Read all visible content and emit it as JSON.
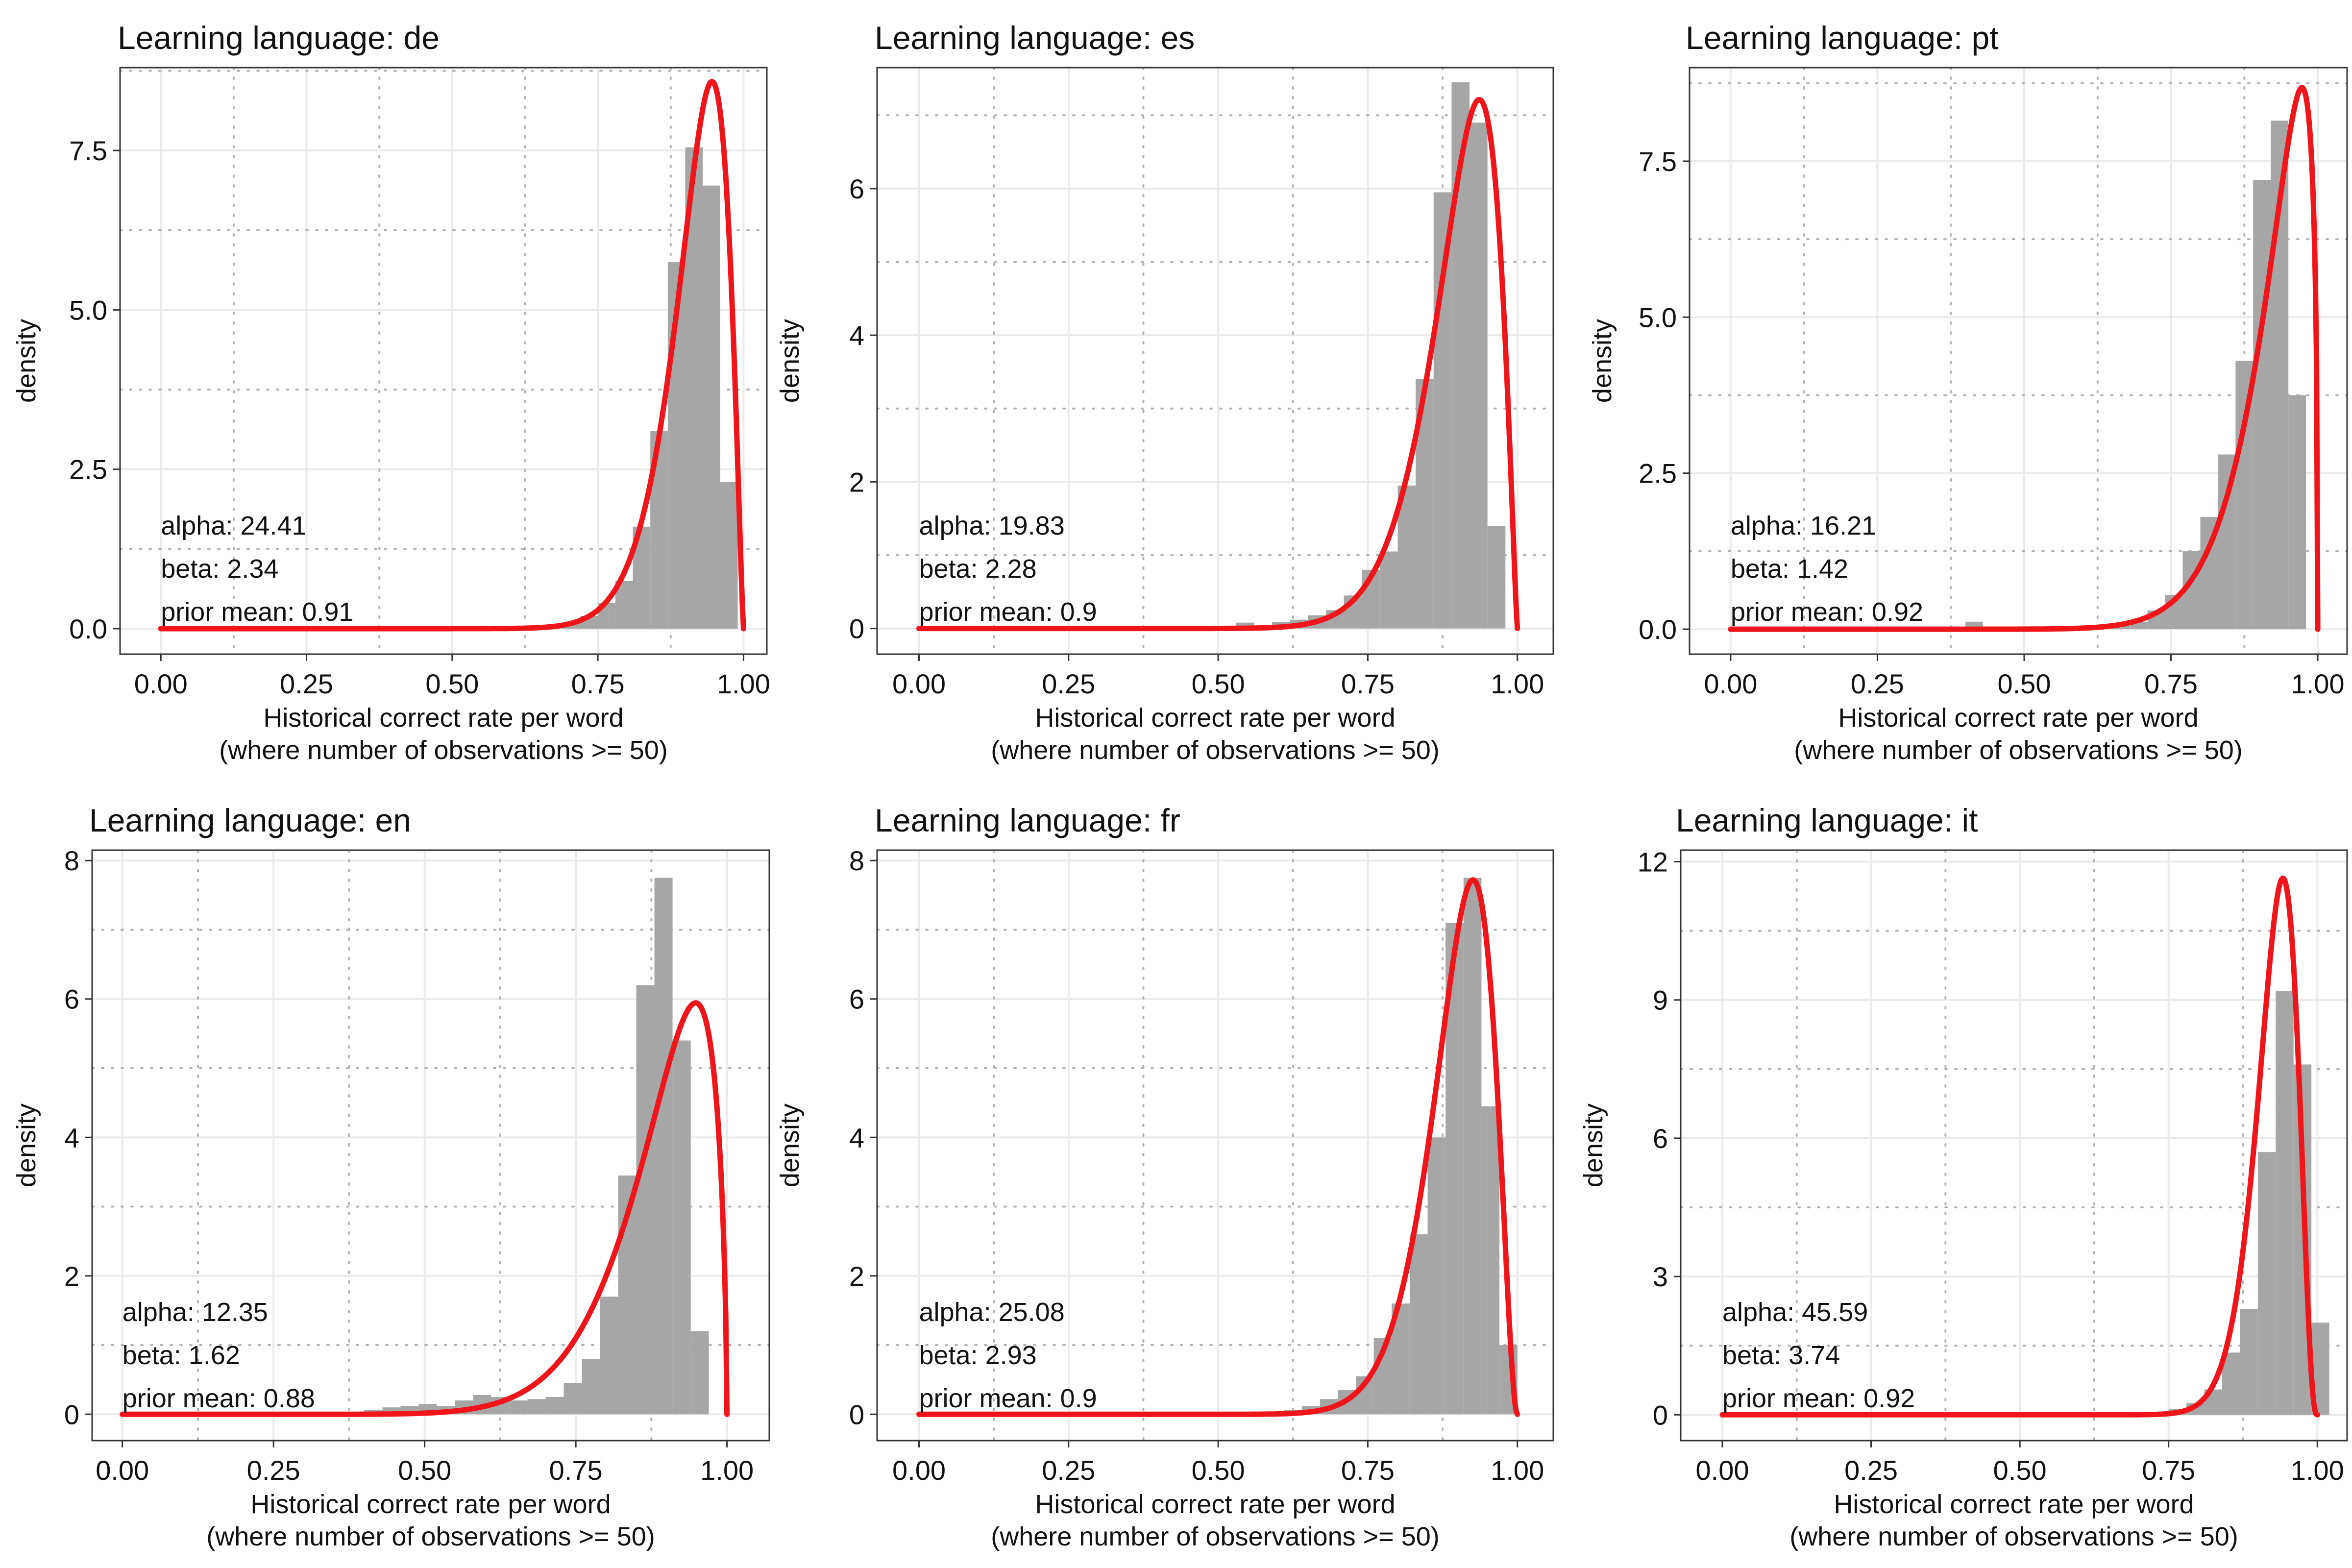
{
  "figure": {
    "style": {
      "bar_color": "#a6a6a6",
      "curve_color": "#f0151a",
      "panel_border_color": "#333333",
      "major_grid_color": "#ebebeb",
      "minor_grid_color": "#b3b3b3"
    }
  },
  "chart_data": [
    {
      "type": "bar",
      "title": "Learning language: de",
      "xlabel": "Historical correct rate per word",
      "xlabel_sub": "(where number of observations >= 50)",
      "ylabel": "density",
      "xlim": [
        -0.07,
        1.04
      ],
      "ylim": [
        -0.4,
        8.8
      ],
      "xticks": [
        0.0,
        0.25,
        0.5,
        0.75,
        1.0
      ],
      "xtick_labels": [
        "0.00",
        "0.25",
        "0.50",
        "0.75",
        "1.00"
      ],
      "yticks": [
        0.0,
        2.5,
        5.0,
        7.5
      ],
      "ytick_labels": [
        "0.0",
        "2.5",
        "5.0",
        "7.5"
      ],
      "bins": [
        [
          0.66,
          0.69,
          0.03
        ],
        [
          0.69,
          0.72,
          0.1
        ],
        [
          0.72,
          0.75,
          0.2
        ],
        [
          0.75,
          0.78,
          0.4
        ],
        [
          0.78,
          0.81,
          0.75
        ],
        [
          0.81,
          0.84,
          1.6
        ],
        [
          0.84,
          0.87,
          3.1
        ],
        [
          0.87,
          0.9,
          5.75
        ],
        [
          0.9,
          0.93,
          7.55
        ],
        [
          0.93,
          0.96,
          6.95
        ],
        [
          0.96,
          0.99,
          2.3
        ]
      ],
      "beta_fit": {
        "alpha": 24.41,
        "beta": 2.34
      },
      "annotations": [
        "alpha: 24.41",
        "beta: 2.34",
        "prior mean: 0.91"
      ]
    },
    {
      "type": "bar",
      "title": "Learning language: es",
      "xlabel": "Historical correct rate per word",
      "xlabel_sub": "(where number of observations >= 50)",
      "ylabel": "density",
      "xlim": [
        -0.07,
        1.06
      ],
      "ylim": [
        -0.35,
        7.65
      ],
      "xticks": [
        0.0,
        0.25,
        0.5,
        0.75,
        1.0
      ],
      "xtick_labels": [
        "0.00",
        "0.25",
        "0.50",
        "0.75",
        "1.00"
      ],
      "yticks": [
        0,
        2,
        4,
        6
      ],
      "ytick_labels": [
        "0",
        "2",
        "4",
        "6"
      ],
      "bins": [
        [
          0.5,
          0.53,
          0.02
        ],
        [
          0.53,
          0.56,
          0.08
        ],
        [
          0.56,
          0.59,
          0.04
        ],
        [
          0.59,
          0.62,
          0.09
        ],
        [
          0.62,
          0.65,
          0.12
        ],
        [
          0.65,
          0.68,
          0.18
        ],
        [
          0.68,
          0.71,
          0.25
        ],
        [
          0.71,
          0.74,
          0.45
        ],
        [
          0.74,
          0.77,
          0.8
        ],
        [
          0.77,
          0.8,
          1.05
        ],
        [
          0.8,
          0.83,
          1.95
        ],
        [
          0.83,
          0.86,
          3.4
        ],
        [
          0.86,
          0.89,
          5.95
        ],
        [
          0.89,
          0.92,
          7.45
        ],
        [
          0.92,
          0.95,
          6.9
        ],
        [
          0.95,
          0.98,
          1.4
        ]
      ],
      "beta_fit": {
        "alpha": 19.83,
        "beta": 2.28
      },
      "annotations": [
        "alpha: 19.83",
        "beta: 2.28",
        "prior mean: 0.9"
      ]
    },
    {
      "type": "bar",
      "title": "Learning language: pt",
      "xlabel": "Historical correct rate per word",
      "xlabel_sub": "(where number of observations >= 50)",
      "ylabel": "density",
      "xlim": [
        -0.07,
        1.05
      ],
      "ylim": [
        -0.4,
        9.0
      ],
      "xticks": [
        0.0,
        0.25,
        0.5,
        0.75,
        1.0
      ],
      "xtick_labels": [
        "0.00",
        "0.25",
        "0.50",
        "0.75",
        "1.00"
      ],
      "yticks": [
        0.0,
        2.5,
        5.0,
        7.5
      ],
      "ytick_labels": [
        "0.0",
        "2.5",
        "5.0",
        "7.5"
      ],
      "bins": [
        [
          0.4,
          0.43,
          0.12
        ],
        [
          0.65,
          0.68,
          0.05
        ],
        [
          0.68,
          0.71,
          0.12
        ],
        [
          0.71,
          0.74,
          0.3
        ],
        [
          0.74,
          0.77,
          0.55
        ],
        [
          0.77,
          0.8,
          1.25
        ],
        [
          0.8,
          0.83,
          1.8
        ],
        [
          0.83,
          0.86,
          2.8
        ],
        [
          0.86,
          0.89,
          4.3
        ],
        [
          0.89,
          0.92,
          7.2
        ],
        [
          0.92,
          0.95,
          8.15
        ],
        [
          0.95,
          0.98,
          3.75
        ]
      ],
      "beta_fit": {
        "alpha": 16.21,
        "beta": 1.42
      },
      "annotations": [
        "alpha: 16.21",
        "beta: 1.42",
        "prior mean: 0.92"
      ]
    },
    {
      "type": "bar",
      "title": "Learning language: en",
      "xlabel": "Historical correct rate per word",
      "xlabel_sub": "(where number of observations >= 50)",
      "ylabel": "density",
      "xlim": [
        -0.05,
        1.07
      ],
      "ylim": [
        -0.38,
        8.15
      ],
      "xticks": [
        0.0,
        0.25,
        0.5,
        0.75,
        1.0
      ],
      "xtick_labels": [
        "0.00",
        "0.25",
        "0.50",
        "0.75",
        "1.00"
      ],
      "yticks": [
        0,
        2,
        4,
        6,
        8
      ],
      "ytick_labels": [
        "0",
        "2",
        "4",
        "6",
        "8"
      ],
      "bins": [
        [
          0.37,
          0.4,
          0.03
        ],
        [
          0.4,
          0.43,
          0.06
        ],
        [
          0.43,
          0.46,
          0.1
        ],
        [
          0.46,
          0.49,
          0.12
        ],
        [
          0.49,
          0.52,
          0.15
        ],
        [
          0.52,
          0.55,
          0.12
        ],
        [
          0.55,
          0.58,
          0.2
        ],
        [
          0.58,
          0.61,
          0.28
        ],
        [
          0.61,
          0.64,
          0.25
        ],
        [
          0.64,
          0.67,
          0.2
        ],
        [
          0.67,
          0.7,
          0.22
        ],
        [
          0.7,
          0.73,
          0.25
        ],
        [
          0.73,
          0.76,
          0.45
        ],
        [
          0.76,
          0.79,
          0.8
        ],
        [
          0.79,
          0.82,
          1.7
        ],
        [
          0.82,
          0.85,
          3.45
        ],
        [
          0.85,
          0.88,
          6.2
        ],
        [
          0.88,
          0.91,
          7.75
        ],
        [
          0.91,
          0.94,
          5.4
        ],
        [
          0.94,
          0.97,
          1.2
        ]
      ],
      "beta_fit": {
        "alpha": 12.35,
        "beta": 1.62
      },
      "annotations": [
        "alpha: 12.35",
        "beta: 1.62",
        "prior mean: 0.88"
      ]
    },
    {
      "type": "bar",
      "title": "Learning language: fr",
      "xlabel": "Historical correct rate per word",
      "xlabel_sub": "(where number of observations >= 50)",
      "ylabel": "density",
      "xlim": [
        -0.07,
        1.06
      ],
      "ylim": [
        -0.38,
        8.15
      ],
      "xticks": [
        0.0,
        0.25,
        0.5,
        0.75,
        1.0
      ],
      "xtick_labels": [
        "0.00",
        "0.25",
        "0.50",
        "0.75",
        "1.00"
      ],
      "yticks": [
        0,
        2,
        4,
        6,
        8
      ],
      "ytick_labels": [
        "0",
        "2",
        "4",
        "6",
        "8"
      ],
      "bins": [
        [
          0.55,
          0.58,
          0.03
        ],
        [
          0.58,
          0.61,
          0.04
        ],
        [
          0.61,
          0.64,
          0.06
        ],
        [
          0.64,
          0.67,
          0.12
        ],
        [
          0.67,
          0.7,
          0.22
        ],
        [
          0.7,
          0.73,
          0.35
        ],
        [
          0.73,
          0.76,
          0.55
        ],
        [
          0.76,
          0.79,
          1.1
        ],
        [
          0.79,
          0.82,
          1.6
        ],
        [
          0.82,
          0.85,
          2.6
        ],
        [
          0.85,
          0.88,
          4.0
        ],
        [
          0.88,
          0.91,
          7.1
        ],
        [
          0.91,
          0.94,
          7.75
        ],
        [
          0.94,
          0.97,
          4.45
        ],
        [
          0.97,
          1.0,
          1.0
        ]
      ],
      "beta_fit": {
        "alpha": 25.08,
        "beta": 2.93
      },
      "annotations": [
        "alpha: 25.08",
        "beta: 2.93",
        "prior mean: 0.9"
      ]
    },
    {
      "type": "bar",
      "title": "Learning language: it",
      "xlabel": "Historical correct rate per word",
      "xlabel_sub": "(where number of observations >= 50)",
      "ylabel": "density",
      "xlim": [
        -0.07,
        1.05
      ],
      "ylim": [
        -0.56,
        12.25
      ],
      "xticks": [
        0.0,
        0.25,
        0.5,
        0.75,
        1.0
      ],
      "xtick_labels": [
        "0.00",
        "0.25",
        "0.50",
        "0.75",
        "1.00"
      ],
      "yticks": [
        0,
        3,
        6,
        9,
        12
      ],
      "ytick_labels": [
        "0",
        "3",
        "6",
        "9",
        "12"
      ],
      "bins": [
        [
          0.72,
          0.75,
          0.05
        ],
        [
          0.75,
          0.78,
          0.12
        ],
        [
          0.78,
          0.81,
          0.25
        ],
        [
          0.81,
          0.84,
          0.55
        ],
        [
          0.84,
          0.87,
          1.35
        ],
        [
          0.87,
          0.9,
          2.3
        ],
        [
          0.9,
          0.93,
          5.7
        ],
        [
          0.93,
          0.96,
          9.2
        ],
        [
          0.96,
          0.99,
          7.6
        ],
        [
          0.99,
          1.02,
          2.0
        ]
      ],
      "beta_fit": {
        "alpha": 45.59,
        "beta": 3.74
      },
      "annotations": [
        "alpha: 45.59",
        "beta: 3.74",
        "prior mean: 0.92"
      ]
    }
  ]
}
